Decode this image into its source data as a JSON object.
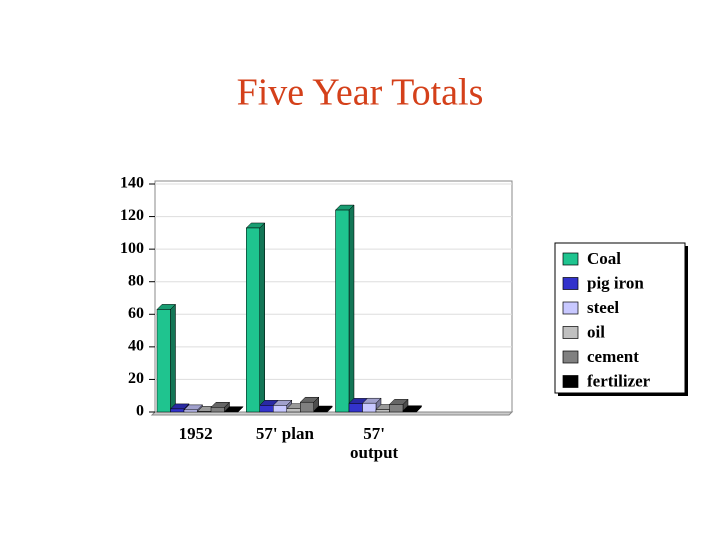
{
  "title": "Five Year Totals",
  "chart_data": {
    "type": "bar3d",
    "categories": [
      "1952",
      "57' plan",
      "57' output",
      null
    ],
    "series": [
      {
        "name": "Coal",
        "color": "#1fc48f",
        "values": [
          63,
          113,
          124,
          null
        ]
      },
      {
        "name": "pig iron",
        "color": "#3333cc",
        "values": [
          1.9,
          4.1,
          5.3,
          null
        ]
      },
      {
        "name": "steel",
        "color": "#c8c8ff",
        "values": [
          1.3,
          4.1,
          5.4,
          null
        ]
      },
      {
        "name": "oil",
        "color": "#c0c0c0",
        "values": [
          0.4,
          2,
          1.5,
          null
        ]
      },
      {
        "name": "cement",
        "color": "#808080",
        "values": [
          2.9,
          6,
          4.7,
          null
        ]
      },
      {
        "name": "fertilizer",
        "color": "#000000",
        "values": [
          0.2,
          0.6,
          0.8,
          null
        ]
      }
    ],
    "ylim": [
      0,
      140
    ],
    "yticks": [
      0,
      20,
      40,
      60,
      80,
      100,
      120,
      140
    ],
    "grid": true,
    "legend": "right"
  }
}
